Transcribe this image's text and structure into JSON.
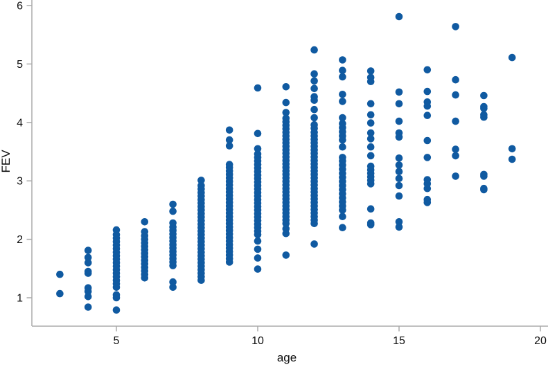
{
  "chart_data": {
    "type": "scatter",
    "xlabel": "age",
    "ylabel": "FEV",
    "x_ticks": [
      5,
      10,
      15,
      20
    ],
    "y_ticks": [
      1,
      2,
      3,
      4,
      5,
      6
    ],
    "xlim": [
      1.8,
      20.5
    ],
    "ylim": [
      0.5,
      6.1
    ],
    "grid": false,
    "legend": "none",
    "point_color": "#105aa1",
    "background_color": "#ffffff",
    "series": [
      {
        "name": "FEV vs age",
        "points_by_age": {
          "3": [
            1.07,
            1.4
          ],
          "4": [
            0.84,
            1.02,
            1.11,
            1.17,
            1.42,
            1.45,
            1.6,
            1.69,
            1.81
          ],
          "5": [
            0.79,
            1.0,
            1.05,
            1.18,
            1.24,
            1.3,
            1.36,
            1.42,
            1.48,
            1.54,
            1.6,
            1.66,
            1.72,
            1.78,
            1.84,
            1.9,
            1.96,
            2.02,
            2.08,
            2.16
          ],
          "6": [
            1.34,
            1.4,
            1.46,
            1.52,
            1.58,
            1.64,
            1.7,
            1.76,
            1.82,
            1.88,
            1.94,
            2.0,
            2.06,
            2.13,
            2.3
          ],
          "7": [
            1.18,
            1.27,
            1.55,
            1.61,
            1.67,
            1.73,
            1.79,
            1.85,
            1.91,
            1.97,
            2.03,
            2.09,
            2.15,
            2.21,
            2.28,
            2.48,
            2.6
          ],
          "8": [
            1.3,
            1.36,
            1.42,
            1.48,
            1.54,
            1.6,
            1.66,
            1.72,
            1.78,
            1.84,
            1.9,
            1.96,
            2.02,
            2.08,
            2.14,
            2.2,
            2.26,
            2.32,
            2.38,
            2.44,
            2.5,
            2.56,
            2.62,
            2.68,
            2.74,
            2.8,
            2.86,
            2.92,
            3.01
          ],
          "9": [
            1.61,
            1.67,
            1.73,
            1.79,
            1.85,
            1.91,
            1.97,
            2.03,
            2.09,
            2.15,
            2.21,
            2.27,
            2.33,
            2.39,
            2.45,
            2.51,
            2.57,
            2.63,
            2.69,
            2.75,
            2.81,
            2.87,
            2.93,
            2.99,
            3.05,
            3.11,
            3.17,
            3.23,
            3.28,
            3.6,
            3.7,
            3.87
          ],
          "10": [
            1.49,
            1.68,
            1.83,
            1.97,
            2.08,
            2.14,
            2.2,
            2.26,
            2.32,
            2.38,
            2.44,
            2.5,
            2.56,
            2.62,
            2.68,
            2.74,
            2.8,
            2.86,
            2.92,
            2.98,
            3.04,
            3.1,
            3.16,
            3.22,
            3.28,
            3.34,
            3.4,
            3.46,
            3.55,
            3.81,
            4.59
          ],
          "11": [
            1.73,
            2.1,
            2.18,
            2.27,
            2.33,
            2.39,
            2.45,
            2.51,
            2.57,
            2.63,
            2.69,
            2.75,
            2.81,
            2.87,
            2.93,
            2.99,
            3.05,
            3.11,
            3.17,
            3.23,
            3.29,
            3.35,
            3.41,
            3.47,
            3.53,
            3.59,
            3.65,
            3.71,
            3.77,
            3.83,
            3.89,
            3.95,
            4.01,
            4.07,
            4.17,
            4.34,
            4.61
          ],
          "12": [
            1.92,
            2.27,
            2.33,
            2.39,
            2.45,
            2.51,
            2.57,
            2.63,
            2.69,
            2.75,
            2.81,
            2.87,
            2.93,
            2.99,
            3.05,
            3.11,
            3.17,
            3.23,
            3.29,
            3.35,
            3.41,
            3.47,
            3.53,
            3.59,
            3.65,
            3.71,
            3.77,
            3.83,
            3.9,
            3.96,
            4.08,
            4.22,
            4.38,
            4.44,
            4.58,
            4.71,
            4.83,
            5.24
          ],
          "13": [
            2.2,
            2.39,
            2.5,
            2.57,
            2.64,
            2.71,
            2.78,
            2.85,
            2.92,
            2.99,
            3.06,
            3.13,
            3.2,
            3.27,
            3.34,
            3.4,
            3.58,
            3.7,
            3.77,
            3.84,
            3.91,
            3.98,
            4.08,
            4.36,
            4.48,
            4.78,
            4.89,
            5.07
          ],
          "14": [
            2.25,
            2.28,
            2.52,
            2.95,
            3.01,
            3.07,
            3.13,
            3.19,
            3.25,
            3.43,
            3.58,
            3.72,
            3.82,
            3.99,
            4.13,
            4.32,
            4.7,
            4.77,
            4.88
          ],
          "15": [
            2.21,
            2.3,
            2.74,
            2.92,
            3.04,
            3.16,
            3.27,
            3.39,
            3.75,
            3.82,
            4.02,
            4.32,
            4.52,
            5.81
          ],
          "16": [
            2.63,
            2.68,
            2.87,
            2.95,
            3.02,
            3.4,
            3.69,
            4.12,
            4.28,
            4.35,
            4.53,
            4.9
          ],
          "17": [
            3.08,
            3.43,
            3.54,
            4.02,
            4.47,
            4.73,
            5.64
          ],
          "18": [
            2.85,
            2.87,
            3.08,
            3.11,
            4.09,
            4.13,
            4.24,
            4.27,
            4.46
          ],
          "19": [
            3.37,
            3.55,
            5.11
          ]
        }
      }
    ]
  }
}
